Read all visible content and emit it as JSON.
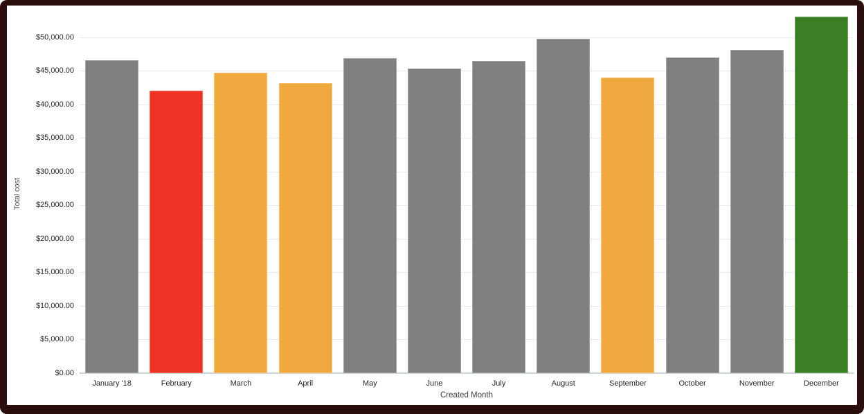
{
  "frame": {
    "border_color": "#2a0e0d",
    "card_background": "#ffffff",
    "gridline_color": "#eaeaea",
    "axis_line_color": "#cdd3da"
  },
  "chart_data": {
    "type": "bar",
    "xlabel": "Created Month",
    "ylabel": "Total cost",
    "categories": [
      "January '18",
      "February",
      "March",
      "April",
      "May",
      "June",
      "July",
      "August",
      "September",
      "October",
      "November",
      "December"
    ],
    "values": [
      46500,
      42000,
      44700,
      43200,
      46900,
      45300,
      46400,
      49700,
      44000,
      47000,
      48100,
      53000
    ],
    "colors": [
      "#808080",
      "#ed3324",
      "#f0a93e",
      "#f0a93e",
      "#808080",
      "#808080",
      "#808080",
      "#808080",
      "#f0a93e",
      "#808080",
      "#808080",
      "#3a7f23"
    ],
    "ylim": [
      0,
      50000
    ],
    "ytick_step": 5000,
    "ytick_labels": [
      "$0.00",
      "$5,000.00",
      "$10,000.00",
      "$15,000.00",
      "$20,000.00",
      "$25,000.00",
      "$30,000.00",
      "$35,000.00",
      "$40,000.00",
      "$45,000.00",
      "$50,000.00"
    ],
    "grid": true,
    "legend": false
  }
}
